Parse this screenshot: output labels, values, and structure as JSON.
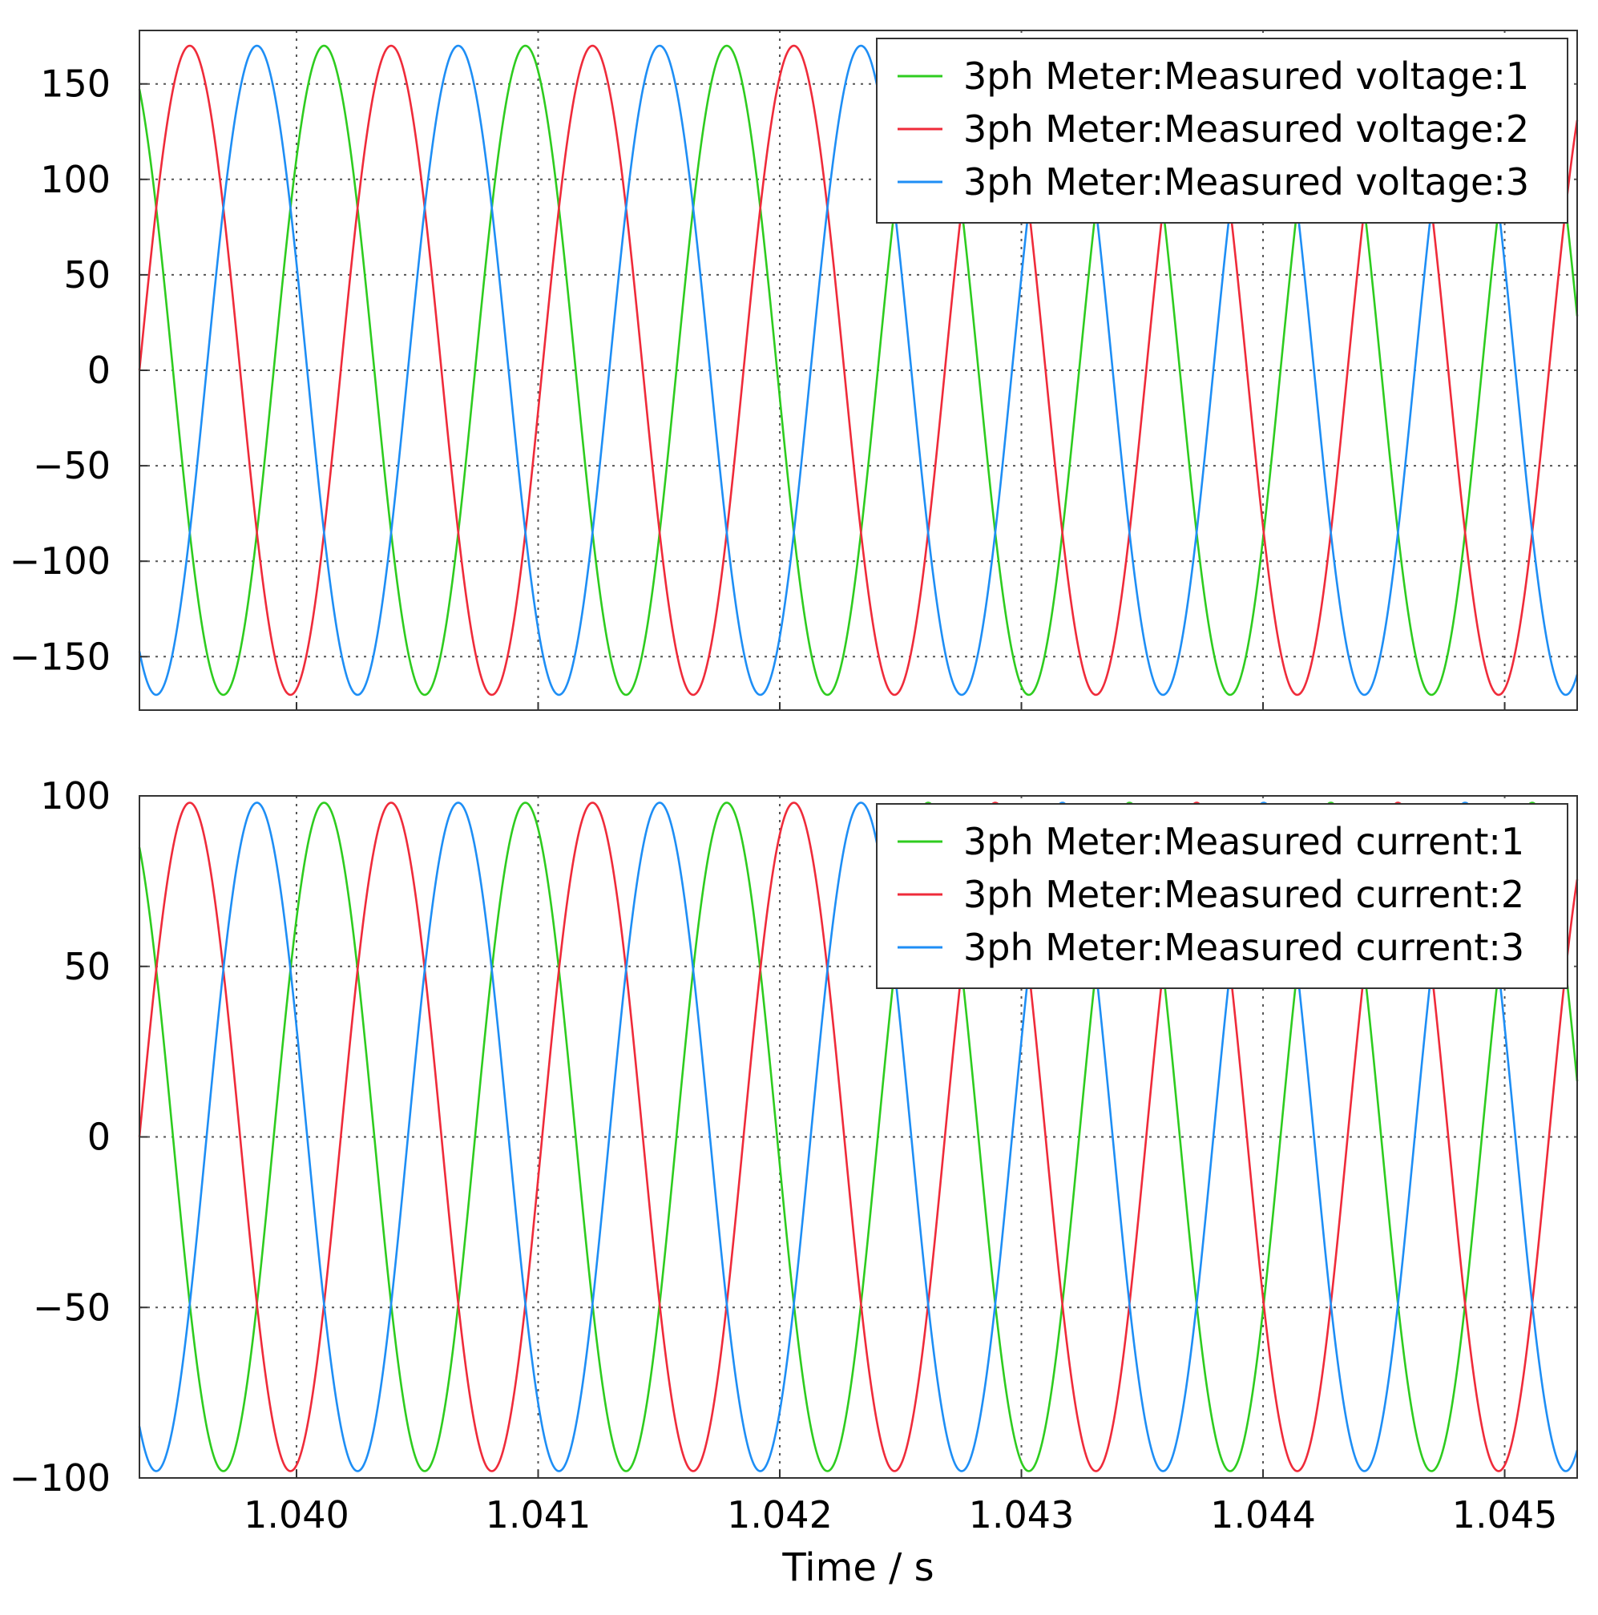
{
  "chart_data": [
    {
      "type": "line",
      "xlim": [
        1.03935,
        1.0453
      ],
      "ylim": [
        -178,
        178
      ],
      "yticks": [
        150,
        100,
        50,
        0,
        -50,
        -100,
        -150
      ],
      "ytick_labels": [
        "150",
        "100",
        "50",
        "0",
        "−50",
        "−100",
        "−150"
      ],
      "xticks": [
        1.04,
        1.041,
        1.042,
        1.043,
        1.044,
        1.045
      ],
      "xtick_labels": [],
      "grid": true,
      "grid_style": "dotted",
      "legend_position": "top-right",
      "frequency_hz": 1200,
      "series": [
        {
          "name": "3ph Meter:Measured voltage:1",
          "color": "#2ecc1f",
          "amplitude": 170,
          "phase_deg": -240
        },
        {
          "name": "3ph Meter:Measured voltage:2",
          "color": "#ef2b3a",
          "amplitude": 170,
          "phase_deg": 0
        },
        {
          "name": "3ph Meter:Measured voltage:3",
          "color": "#1e8ef5",
          "amplitude": 170,
          "phase_deg": 240
        }
      ]
    },
    {
      "type": "line",
      "xlim": [
        1.03935,
        1.0453
      ],
      "ylim": [
        -100,
        100
      ],
      "yticks": [
        100,
        50,
        0,
        -50,
        -100
      ],
      "ytick_labels": [
        "100",
        "50",
        "0",
        "−50",
        "−100"
      ],
      "xticks": [
        1.04,
        1.041,
        1.042,
        1.043,
        1.044,
        1.045
      ],
      "xtick_labels": [
        "1.040",
        "1.041",
        "1.042",
        "1.043",
        "1.044",
        "1.045"
      ],
      "xlabel": "Time / s",
      "grid": true,
      "grid_style": "dotted",
      "legend_position": "top-right",
      "frequency_hz": 1200,
      "series": [
        {
          "name": "3ph Meter:Measured current:1",
          "color": "#2ecc1f",
          "amplitude": 98,
          "phase_deg": -240
        },
        {
          "name": "3ph Meter:Measured current:2",
          "color": "#ef2b3a",
          "amplitude": 98,
          "phase_deg": 0
        },
        {
          "name": "3ph Meter:Measured current:3",
          "color": "#1e8ef5",
          "amplitude": 98,
          "phase_deg": 240
        }
      ]
    }
  ]
}
